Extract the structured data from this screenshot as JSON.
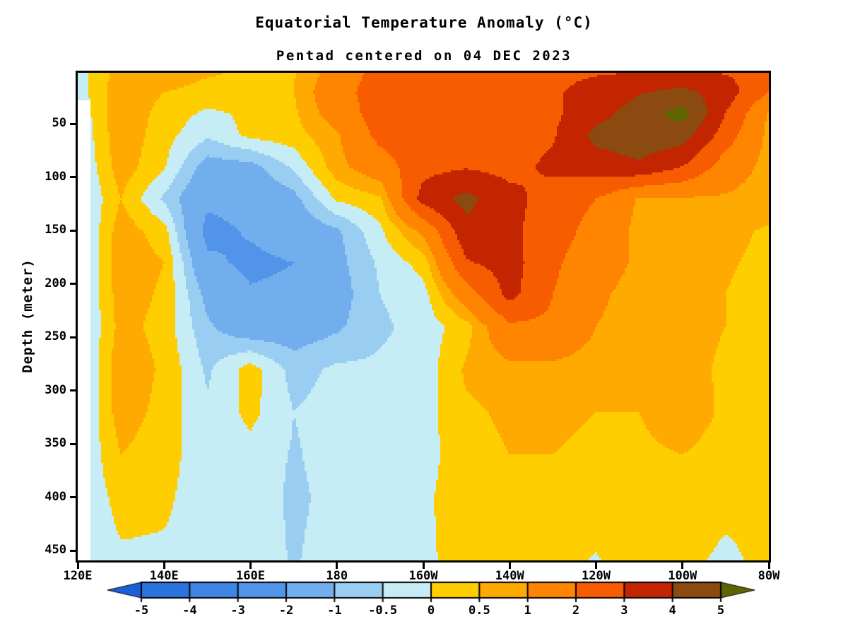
{
  "title": "Equatorial Temperature Anomaly (°C)",
  "subtitle": "Pentad centered on 04 DEC 2023",
  "chart_data": {
    "type": "filled-contour",
    "title": "Equatorial Temperature Anomaly (°C)",
    "subtitle": "Pentad centered on 04 DEC 2023",
    "ylabel": "Depth (meter)",
    "y_ticks": [
      50,
      100,
      150,
      200,
      250,
      300,
      350,
      400,
      450
    ],
    "x_tick_labels": [
      "120E",
      "140E",
      "160E",
      "180",
      "160W",
      "140W",
      "120W",
      "100W",
      "80W"
    ],
    "x_tick_lons": [
      120,
      140,
      160,
      180,
      200,
      220,
      240,
      260,
      280
    ],
    "lon_range": [
      120,
      280
    ],
    "depth_range": [
      0,
      460
    ],
    "units": "degC anomaly",
    "levels": [
      -5,
      -4,
      -3,
      -2,
      -1,
      -0.5,
      0,
      0.5,
      1,
      2,
      3,
      4,
      5
    ],
    "band_colors": [
      "#2b74e0",
      "#3e85e6",
      "#5294ea",
      "#72aeee",
      "#9acdf2",
      "#c6edf6",
      "#ffce00",
      "#ffaa00",
      "#ff8400",
      "#f85c00",
      "#c22500",
      "#8a4a10"
    ],
    "below_color": "#1a5fd8",
    "above_color": "#5e6500",
    "land_mask": {
      "lon_max": 123,
      "depth_min": 28,
      "color": "#ffffff"
    },
    "grid_lons": [
      120,
      130,
      140,
      150,
      160,
      170,
      180,
      190,
      200,
      210,
      220,
      230,
      240,
      250,
      260,
      270,
      280
    ],
    "grid_depths": [
      0,
      20,
      40,
      60,
      90,
      120,
      150,
      180,
      210,
      240,
      280,
      320,
      360,
      400,
      460
    ],
    "anomaly_grid": [
      [
        -0.2,
        0.7,
        0.9,
        0.6,
        0.4,
        0.45,
        1.3,
        2.4,
        2.6,
        2.7,
        2.7,
        2.8,
        2.9,
        2.9,
        2.9,
        2.9,
        2.6
      ],
      [
        -0.3,
        0.9,
        0.5,
        0.3,
        0.3,
        0.5,
        1.6,
        2.5,
        2.6,
        2.7,
        2.7,
        2.9,
        3.3,
        3.9,
        4.3,
        3.5,
        2.0
      ],
      [
        -0.4,
        0.9,
        0.3,
        -0.1,
        0.1,
        0.4,
        1.4,
        2.5,
        2.6,
        2.7,
        2.6,
        2.8,
        3.6,
        4.5,
        5.4,
        3.0,
        0.9
      ],
      [
        -0.5,
        0.9,
        0.2,
        -0.4,
        0.15,
        0.3,
        0.9,
        2.3,
        2.6,
        2.7,
        2.6,
        2.9,
        4.3,
        4.7,
        4.5,
        2.5,
        0.8
      ],
      [
        -0.6,
        0.8,
        0.05,
        -1.3,
        -1.2,
        -0.4,
        0.8,
        1.5,
        2.7,
        2.9,
        2.7,
        3.2,
        3.5,
        3.8,
        3.0,
        1.5,
        0.75
      ],
      [
        -0.7,
        0.5,
        -0.6,
        -1.8,
        -1.6,
        -1.2,
        0.1,
        0.4,
        3.4,
        4.3,
        3.3,
        2.6,
        2.0,
        0.9,
        0.9,
        0.9,
        0.7
      ],
      [
        -0.8,
        0.8,
        0.2,
        -2.3,
        -1.9,
        -1.5,
        -1.1,
        -0.1,
        1.2,
        3.7,
        3.2,
        2.5,
        1.6,
        0.8,
        0.8,
        0.6,
        0.45
      ],
      [
        -0.8,
        0.9,
        0.5,
        -1.8,
        -2.2,
        -2.0,
        -1.2,
        -0.4,
        0.2,
        2.9,
        3.4,
        2.2,
        1.3,
        0.9,
        0.8,
        0.55,
        0.4
      ],
      [
        -0.8,
        0.8,
        0.4,
        -1.2,
        -1.9,
        -1.8,
        -1.3,
        -0.5,
        -0.2,
        1.5,
        3.3,
        2.0,
        1.1,
        0.8,
        0.7,
        0.5,
        0.3
      ],
      [
        -0.8,
        0.7,
        0.3,
        -0.9,
        -1.5,
        -1.4,
        -1.1,
        -0.6,
        -0.3,
        0.3,
        1.8,
        1.8,
        1.0,
        0.8,
        0.7,
        0.5,
        0.3
      ],
      [
        -0.8,
        0.9,
        0.4,
        -0.6,
        0.25,
        -0.7,
        -0.4,
        -0.4,
        -0.3,
        0.6,
        0.8,
        0.8,
        0.7,
        0.55,
        0.7,
        0.4,
        0.3
      ],
      [
        -0.7,
        0.8,
        0.3,
        -0.4,
        0.15,
        -0.5,
        -0.3,
        -0.3,
        -0.2,
        0.4,
        0.6,
        0.6,
        0.5,
        0.5,
        0.8,
        0.4,
        0.2
      ],
      [
        -0.6,
        0.5,
        0.2,
        -0.3,
        -0.2,
        -0.55,
        -0.3,
        -0.2,
        -0.2,
        0.3,
        0.5,
        0.5,
        0.4,
        0.4,
        0.5,
        0.3,
        0.2
      ],
      [
        -0.5,
        0.2,
        0.1,
        -0.3,
        -0.2,
        -0.6,
        -0.35,
        -0.5,
        -0.1,
        0.3,
        0.4,
        0.4,
        0.3,
        0.3,
        0.3,
        0.2,
        0.1
      ],
      [
        -0.4,
        -0.1,
        -0.1,
        -0.2,
        -0.2,
        -0.55,
        -0.25,
        -0.45,
        -0.1,
        0.2,
        0.05,
        0.2,
        -0.05,
        0.3,
        0.2,
        -0.15,
        0.2
      ]
    ],
    "colorbar": {
      "tick_labels": [
        "-5",
        "-4",
        "-3",
        "-2",
        "-1",
        "-0.5",
        "0",
        "0.5",
        "1",
        "2",
        "3",
        "4",
        "5"
      ],
      "arrow_left": "below -5",
      "arrow_right": "above 5"
    }
  }
}
